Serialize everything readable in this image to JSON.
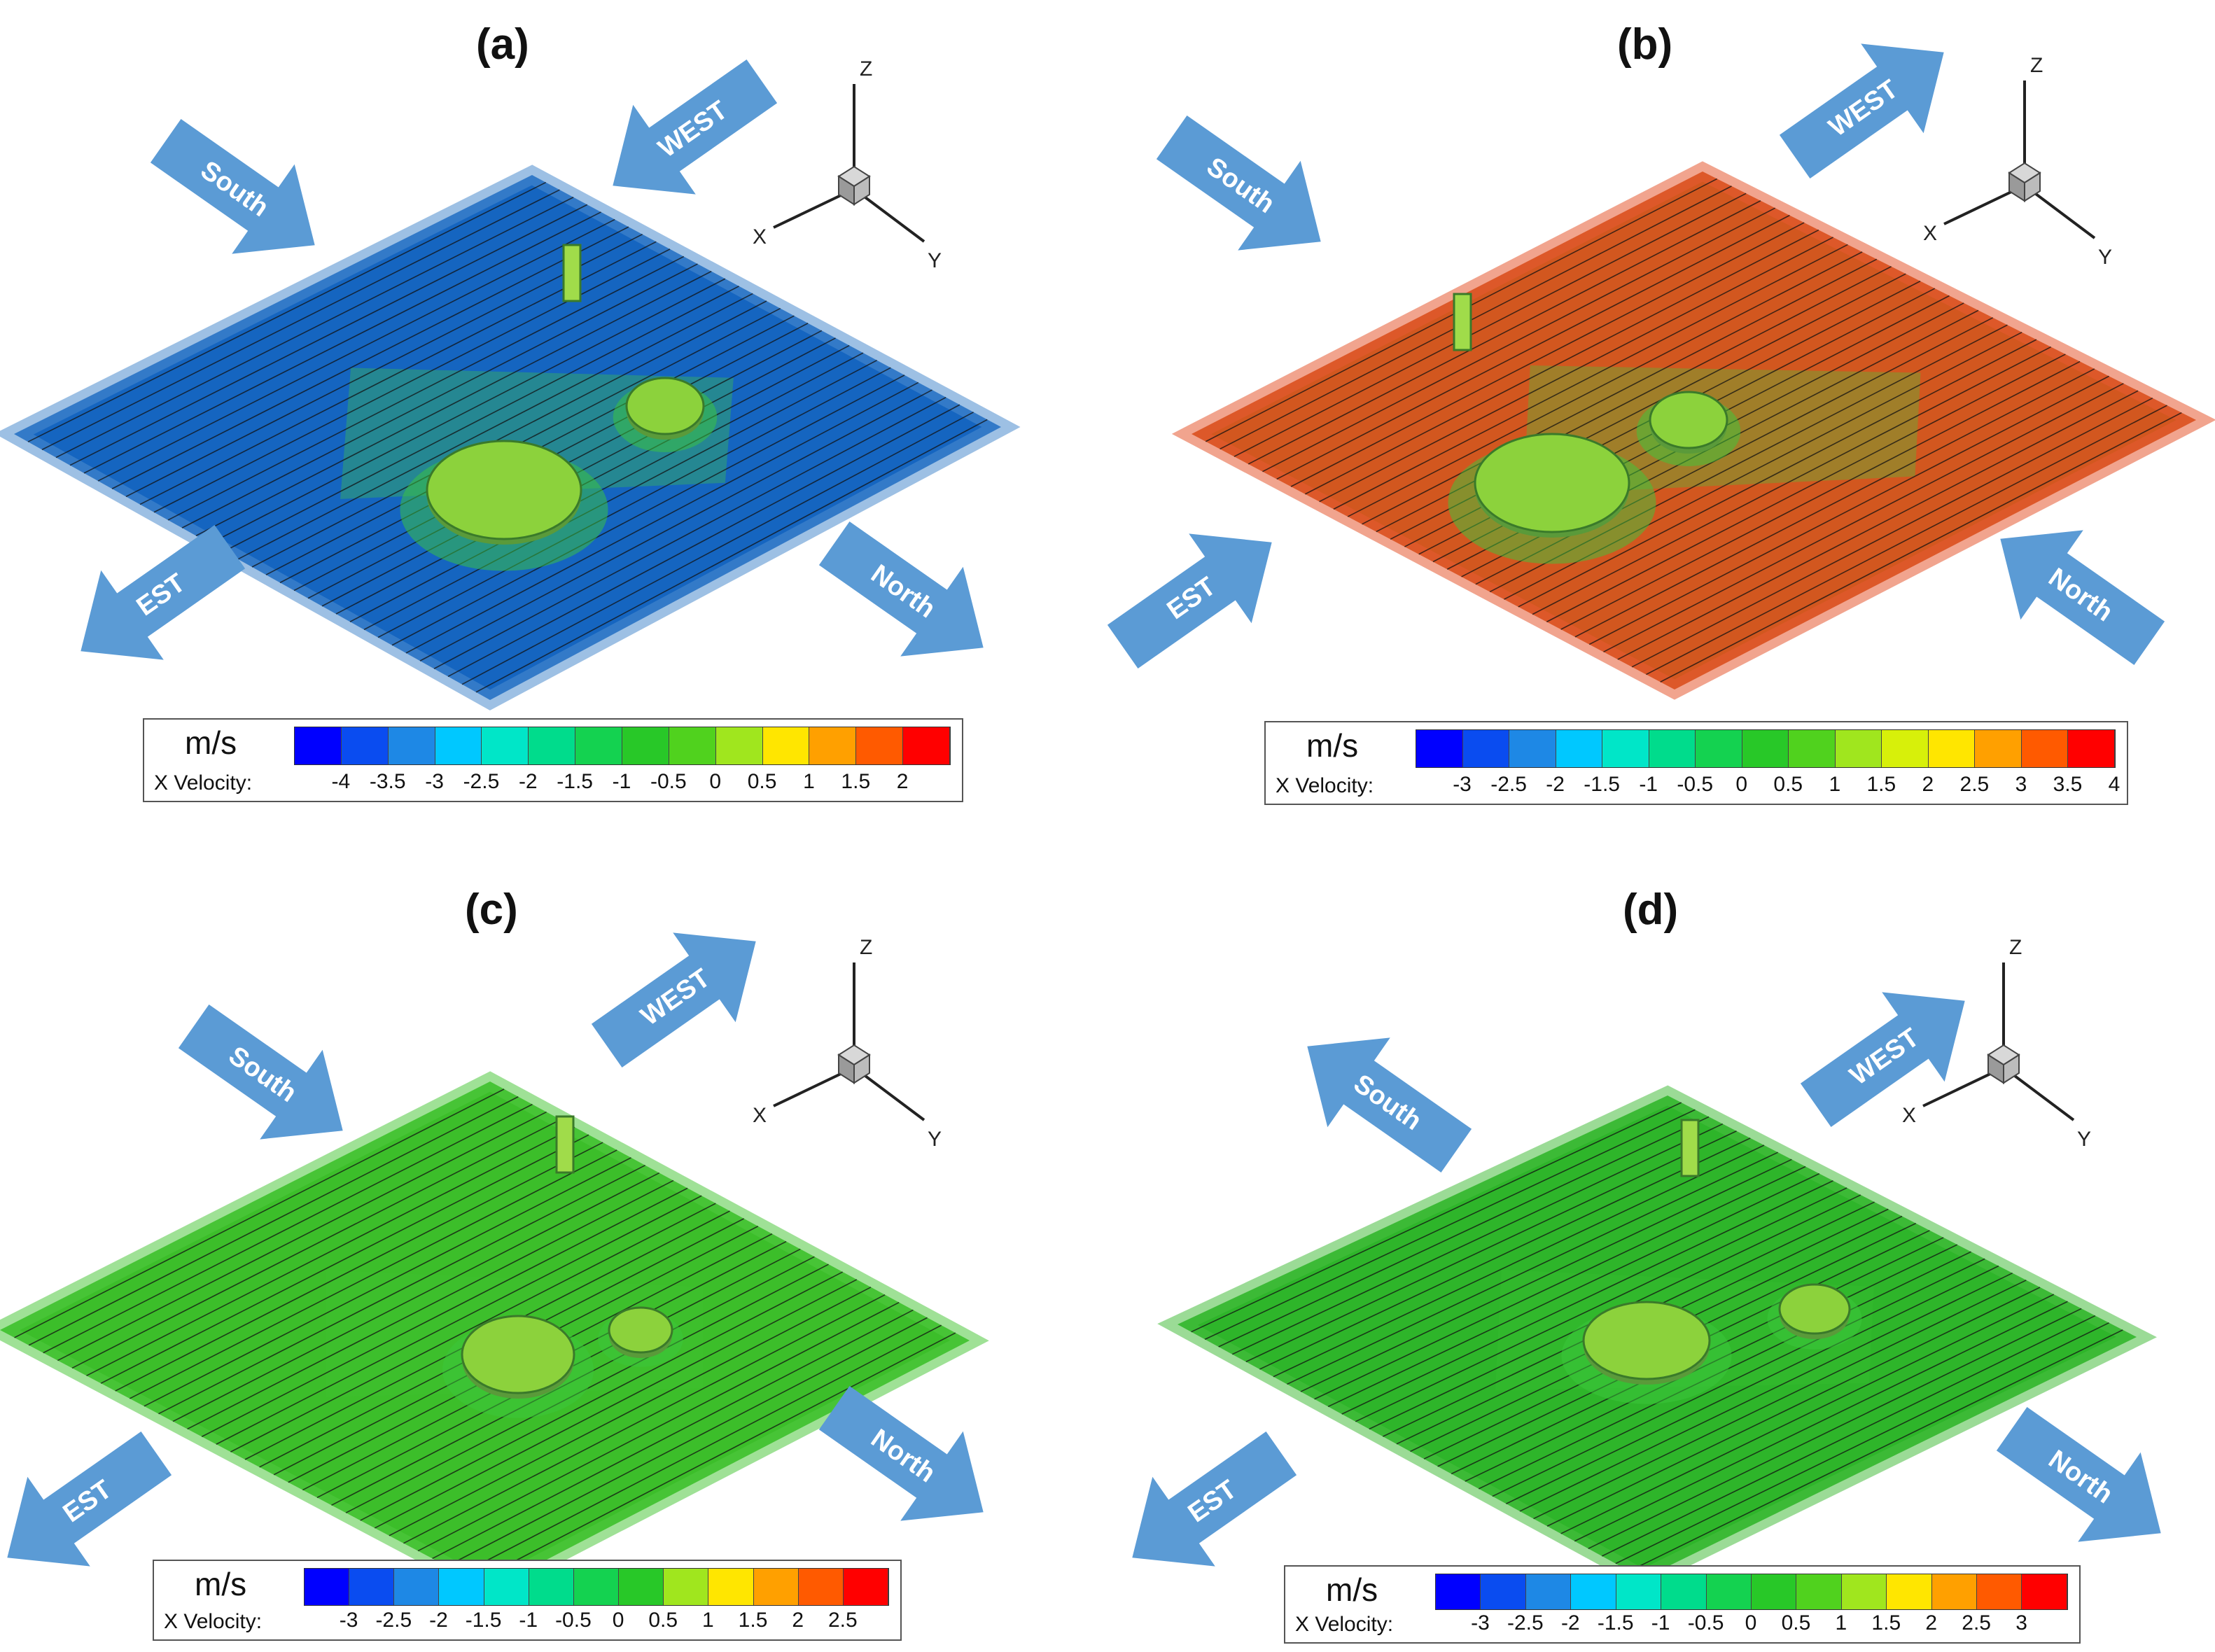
{
  "panels": [
    {
      "id": "a",
      "label": "(a)",
      "field_color": "#1565c0",
      "field_edge_color": "#2f6fb0",
      "arrows": {
        "south": "South",
        "west": "WEST",
        "est": "EST",
        "north": "North"
      },
      "axes": {
        "x": "X",
        "y": "Y",
        "z": "Z"
      },
      "colorbar": {
        "unit": "m/s",
        "variable": "X Velocity:",
        "ticks": [
          "-4",
          "-3.5",
          "-3",
          "-2.5",
          "-2",
          "-1.5",
          "-1",
          "-0.5",
          "0",
          "0.5",
          "1",
          "1.5",
          "2"
        ],
        "colors": [
          "#0000ff",
          "#0a4cf0",
          "#1e88e5",
          "#00c8ff",
          "#00e6c8",
          "#00dc8c",
          "#14d250",
          "#28c828",
          "#50d21e",
          "#a0e61e",
          "#ffe600",
          "#ffa000",
          "#ff5a00",
          "#ff0000"
        ]
      }
    },
    {
      "id": "b",
      "label": "(b)",
      "field_color": "#d2571f",
      "field_edge_color": "#c83c14",
      "arrows": {
        "south": "South",
        "west": "WEST",
        "est": "EST",
        "north": "North"
      },
      "axes": {
        "x": "X",
        "y": "Y",
        "z": "Z"
      },
      "colorbar": {
        "unit": "m/s",
        "variable": "X Velocity:",
        "ticks": [
          "-3",
          "-2.5",
          "-2",
          "-1.5",
          "-1",
          "-0.5",
          "0",
          "0.5",
          "1",
          "1.5",
          "2",
          "2.5",
          "3",
          "3.5",
          "4"
        ],
        "colors": [
          "#0000ff",
          "#0a4cf0",
          "#1e88e5",
          "#00c8ff",
          "#00e6c8",
          "#00dc8c",
          "#14d250",
          "#28c828",
          "#50d21e",
          "#a0e61e",
          "#d7f00a",
          "#ffe600",
          "#ffa000",
          "#ff5a00",
          "#ff0000"
        ]
      }
    },
    {
      "id": "c",
      "label": "(c)",
      "field_color": "#3cbe2a",
      "field_edge_color": "#32aa22",
      "arrows": {
        "south": "South",
        "west": "WEST",
        "est": "EST",
        "north": "North"
      },
      "axes": {
        "x": "X",
        "y": "Y",
        "z": "Z"
      },
      "colorbar": {
        "unit": "m/s",
        "variable": "X Velocity:",
        "ticks": [
          "-3",
          "-2.5",
          "-2",
          "-1.5",
          "-1",
          "-0.5",
          "0",
          "0.5",
          "1",
          "1.5",
          "2",
          "2.5"
        ],
        "colors": [
          "#0000ff",
          "#0a4cf0",
          "#1e88e5",
          "#00c8ff",
          "#00e6c8",
          "#00dc8c",
          "#14d250",
          "#28c828",
          "#a0e61e",
          "#ffe600",
          "#ffa000",
          "#ff5a00",
          "#ff0000"
        ]
      }
    },
    {
      "id": "d",
      "label": "(d)",
      "field_color": "#2eb52a",
      "field_edge_color": "#2aa022",
      "arrows": {
        "south": "South",
        "west": "WEST",
        "est": "EST",
        "north": "North"
      },
      "axes": {
        "x": "X",
        "y": "Y",
        "z": "Z"
      },
      "colorbar": {
        "unit": "m/s",
        "variable": "X Velocity:",
        "ticks": [
          "-3",
          "-2.5",
          "-2",
          "-1.5",
          "-1",
          "-0.5",
          "0",
          "0.5",
          "1",
          "1.5",
          "2",
          "2.5",
          "3"
        ],
        "colors": [
          "#0000ff",
          "#0a4cf0",
          "#1e88e5",
          "#00c8ff",
          "#00e6c8",
          "#00dc8c",
          "#14d250",
          "#28c828",
          "#50d21e",
          "#a0e61e",
          "#ffe600",
          "#ffa000",
          "#ff5a00",
          "#ff0000"
        ]
      }
    }
  ],
  "arrow_color": "#5b9bd5"
}
